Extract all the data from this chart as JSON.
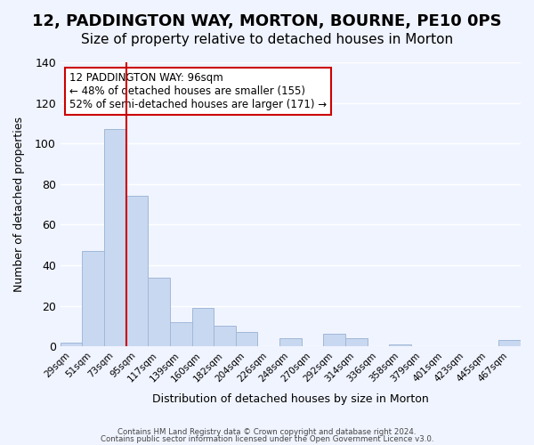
{
  "title": "12, PADDINGTON WAY, MORTON, BOURNE, PE10 0PS",
  "subtitle": "Size of property relative to detached houses in Morton",
  "xlabel": "Distribution of detached houses by size in Morton",
  "ylabel": "Number of detached properties",
  "bar_color": "#c8d8f0",
  "bar_edge_color": "#a0b8d8",
  "categories": [
    "29sqm",
    "51sqm",
    "73sqm",
    "95sqm",
    "117sqm",
    "139sqm",
    "160sqm",
    "182sqm",
    "204sqm",
    "226sqm",
    "248sqm",
    "270sqm",
    "292sqm",
    "314sqm",
    "336sqm",
    "358sqm",
    "379sqm",
    "401sqm",
    "423sqm",
    "445sqm",
    "467sqm"
  ],
  "values": [
    2,
    47,
    107,
    74,
    34,
    12,
    19,
    10,
    7,
    0,
    4,
    0,
    6,
    4,
    0,
    1,
    0,
    0,
    0,
    0,
    3
  ],
  "ylim": [
    0,
    140
  ],
  "yticks": [
    0,
    20,
    40,
    60,
    80,
    100,
    120,
    140
  ],
  "property_line_x": 3,
  "property_line_color": "#cc0000",
  "annotation_title": "12 PADDINGTON WAY: 96sqm",
  "annotation_line1": "← 48% of detached houses are smaller (155)",
  "annotation_line2": "52% of semi-detached houses are larger (171) →",
  "annotation_box_color": "#ffffff",
  "annotation_box_edge": "#cc0000",
  "footer1": "Contains HM Land Registry data © Crown copyright and database right 2024.",
  "footer2": "Contains public sector information licensed under the Open Government Licence v3.0.",
  "background_color": "#f0f4ff",
  "grid_color": "#ffffff",
  "title_fontsize": 13,
  "subtitle_fontsize": 11
}
